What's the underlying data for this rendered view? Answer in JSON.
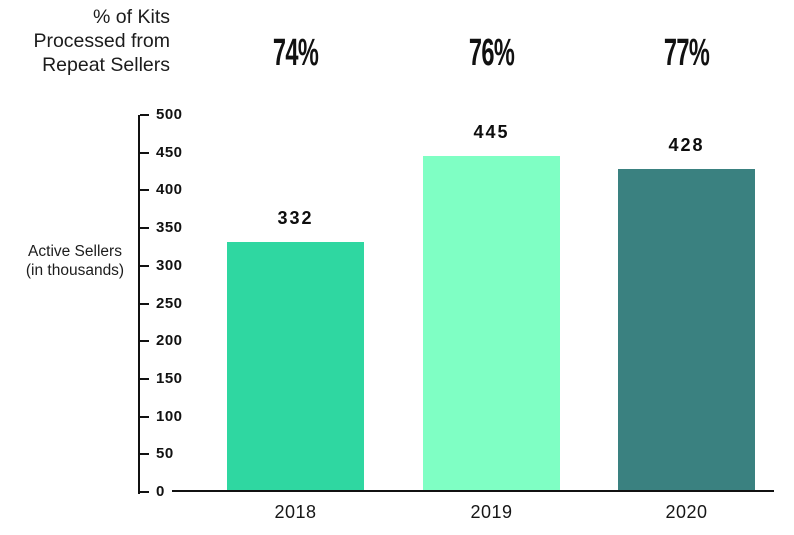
{
  "header": {
    "kicker": "% of Kits\nProcessed from\nRepeat Sellers"
  },
  "axes": {
    "y_title": "Active Sellers\n(in thousands)",
    "y_ticks": [
      0,
      50,
      100,
      150,
      200,
      250,
      300,
      350,
      400,
      450,
      500
    ],
    "x_labels": [
      "2018",
      "2019",
      "2020"
    ]
  },
  "chart_data": {
    "type": "bar",
    "title": "% of Kits Processed from Repeat Sellers",
    "categories": [
      "2018",
      "2019",
      "2020"
    ],
    "values": [
      332,
      445,
      428
    ],
    "value_labels": [
      "332",
      "445",
      "428"
    ],
    "repeat_seller_pct": [
      "74%",
      "76%",
      "77%"
    ],
    "xlabel": "",
    "ylabel": "Active Sellers (in thousands)",
    "ylim": [
      0,
      500
    ],
    "ytick_step": 50,
    "grid": false,
    "legend": false,
    "bar_colors": [
      "#2fd7a1",
      "#7fffc4",
      "#3a8180"
    ],
    "axis_color": "#111111",
    "text_color": "#111111",
    "background_color": "#ffffff"
  }
}
